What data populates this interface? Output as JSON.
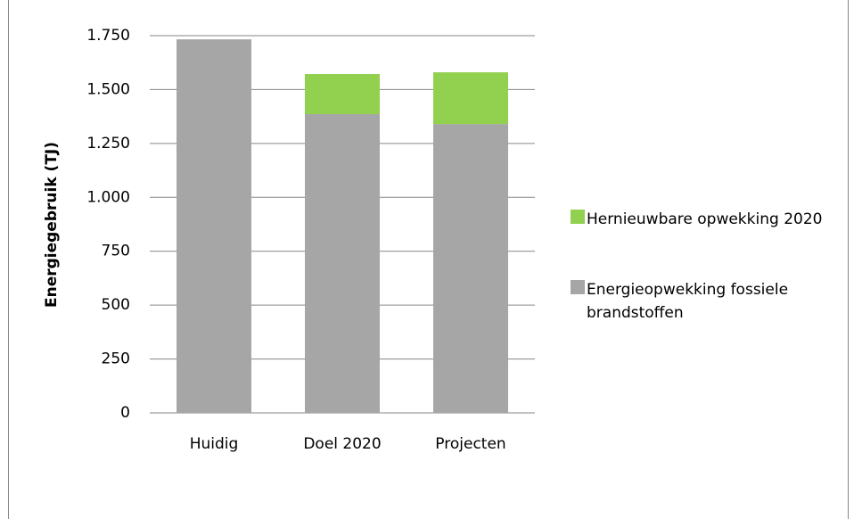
{
  "chart_data": {
    "type": "stacked_bar",
    "y_axis_label": "Energiegebruik (TJ)",
    "categories": [
      "Huidig",
      "Doel 2020",
      "Projecten"
    ],
    "series": [
      {
        "name": "Energieopwekking fossiele brandstoffen",
        "color": "#a6a6a6",
        "values": [
          1733,
          1386,
          1340
        ]
      },
      {
        "name": "Hernieuwbare opwekking 2020",
        "color": "#92d050",
        "values": [
          0,
          186,
          240
        ]
      }
    ],
    "ylim": [
      0,
      1750
    ],
    "yticks": [
      0,
      250,
      500,
      750,
      {
        "value": 1000,
        "label": "1.000"
      },
      {
        "value": 1250,
        "label": "1.250"
      },
      {
        "value": 1500,
        "label": "1.500"
      },
      {
        "value": 1750,
        "label": "1.750"
      }
    ],
    "grid": true,
    "legend": "right"
  }
}
